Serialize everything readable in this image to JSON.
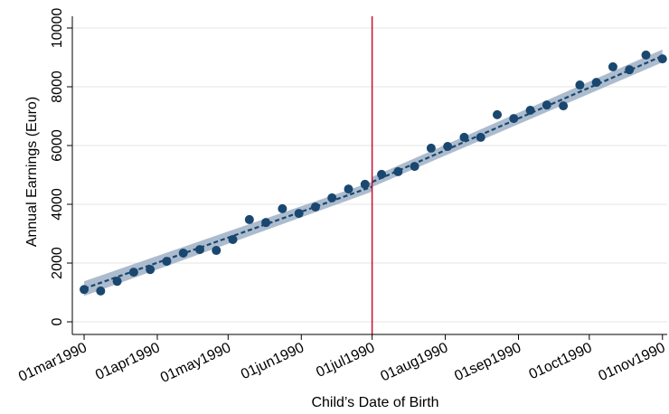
{
  "chart_data": {
    "type": "scatter",
    "x_label": "Child’s Date of Birth",
    "y_label": "Annual Earnings (Euro)",
    "color": "#1a476f",
    "band_color": "#9eb0c6",
    "vline": {
      "x": "1990-07-01",
      "color": "#c8102e"
    },
    "grid": true,
    "x": [
      "1990-03-01",
      "1990-03-08",
      "1990-03-15",
      "1990-03-22",
      "1990-03-29",
      "1990-04-05",
      "1990-04-12",
      "1990-04-19",
      "1990-04-26",
      "1990-05-03",
      "1990-05-10",
      "1990-05-17",
      "1990-05-24",
      "1990-05-31",
      "1990-06-07",
      "1990-06-14",
      "1990-06-21",
      "1990-06-28",
      "1990-07-05",
      "1990-07-12",
      "1990-07-19",
      "1990-07-26",
      "1990-08-02",
      "1990-08-09",
      "1990-08-16",
      "1990-08-23",
      "1990-08-30",
      "1990-09-06",
      "1990-09-13",
      "1990-09-20",
      "1990-09-27",
      "1990-10-04",
      "1990-10-11",
      "1990-10-18",
      "1990-10-25",
      "1990-11-01"
    ],
    "values": [
      1100,
      1050,
      1380,
      1690,
      1780,
      2060,
      2340,
      2460,
      2430,
      2800,
      3480,
      3380,
      3850,
      3690,
      3910,
      4220,
      4520,
      4680,
      5020,
      5110,
      5290,
      5910,
      5970,
      6280,
      6280,
      7050,
      6920,
      7200,
      7380,
      7350,
      8060,
      8150,
      8680,
      8580,
      9080,
      8950
    ],
    "fits": [
      {
        "x": [
          "1990-03-01",
          "1990-07-01"
        ],
        "values": [
          1130,
          4600
        ],
        "lower": [
          880,
          4430
        ],
        "upper": [
          1380,
          4770
        ]
      },
      {
        "x": [
          "1990-07-01",
          "1990-11-01"
        ],
        "values": [
          4760,
          9050
        ],
        "lower": [
          4590,
          8830
        ],
        "upper": [
          4930,
          9270
        ]
      }
    ],
    "xlim": [
      "1990-02-24",
      "1990-11-03"
    ],
    "xticks": [
      {
        "value": "1990-03-01",
        "label": "01mar1990"
      },
      {
        "value": "1990-04-01",
        "label": "01apr1990"
      },
      {
        "value": "1990-05-01",
        "label": "01may1990"
      },
      {
        "value": "1990-06-01",
        "label": "01jun1990"
      },
      {
        "value": "1990-07-01",
        "label": "01jul1990"
      },
      {
        "value": "1990-08-01",
        "label": "01aug1990"
      },
      {
        "value": "1990-09-01",
        "label": "01sep1990"
      },
      {
        "value": "1990-10-01",
        "label": "01oct1990"
      },
      {
        "value": "1990-11-01",
        "label": "01nov1990"
      }
    ],
    "ylim": [
      -430,
      10400
    ],
    "yticks": [
      0,
      2000,
      4000,
      6000,
      8000,
      10000
    ]
  }
}
